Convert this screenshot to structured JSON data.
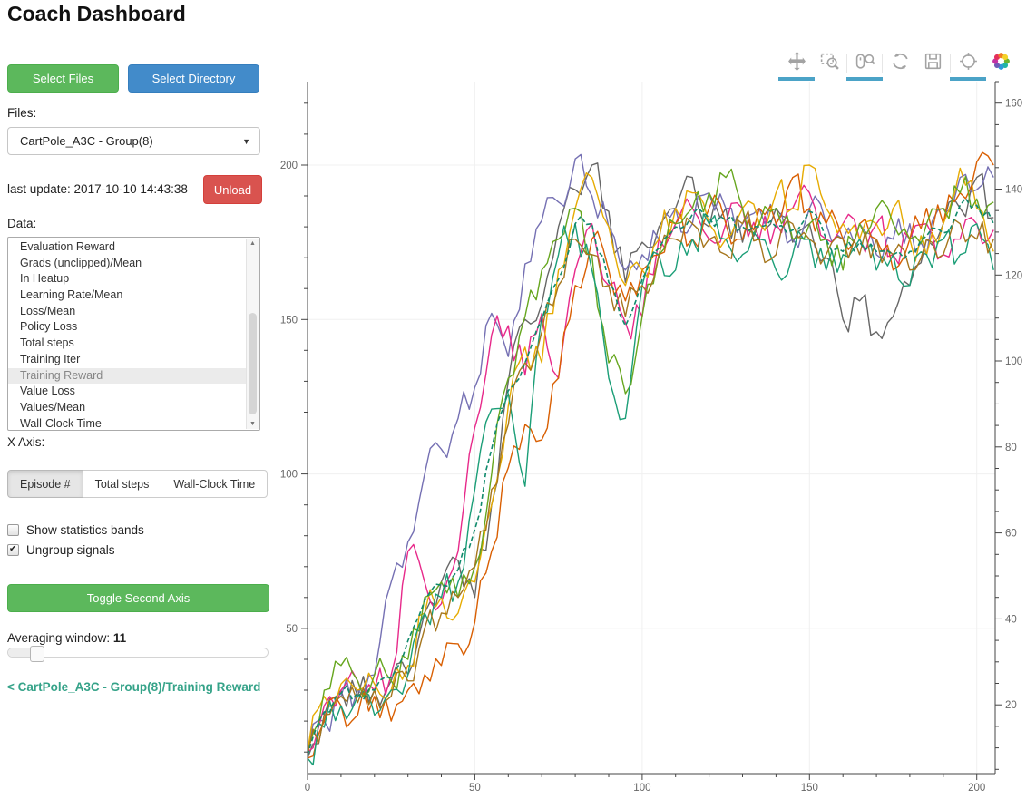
{
  "header": {
    "title": "Coach Dashboard"
  },
  "sidebar": {
    "select_files_label": "Select Files",
    "select_directory_label": "Select Directory",
    "files_label": "Files:",
    "files_selected": "CartPole_A3C - Group(8)",
    "last_update": "last update: 2017-10-10 14:43:38",
    "unload_label": "Unload",
    "data_label": "Data:",
    "data_items": [
      "Evaluation Reward",
      "Grads (unclipped)/Mean",
      "In Heatup",
      "Learning Rate/Mean",
      "Loss/Mean",
      "Policy Loss",
      "Total steps",
      "Training Iter",
      "Training Reward",
      "Value Loss",
      "Values/Mean",
      "Wall-Clock Time"
    ],
    "data_selected": "Training Reward",
    "x_axis_label": "X Axis:",
    "x_axis_options": [
      "Episode #",
      "Total steps",
      "Wall-Clock Time"
    ],
    "x_axis_selected": "Episode #",
    "checkboxes": [
      {
        "label": "Show statistics bands",
        "checked": false
      },
      {
        "label": "Ungroup signals",
        "checked": true
      }
    ],
    "toggle_second_axis_label": "Toggle Second Axis",
    "averaging_window_label": "Averaging window:",
    "averaging_window_value": "11",
    "breadcrumb_link": "< CartPole_A3C - Group(8)/Training Reward"
  },
  "toolbar": {
    "active_underline_color": "#4ba3c7",
    "tools": [
      {
        "name": "pan",
        "active": true
      },
      {
        "name": "box-zoom",
        "active": false
      },
      {
        "name": "wheel-zoom",
        "active": true
      },
      {
        "name": "reset",
        "active": false
      },
      {
        "name": "save",
        "active": false
      },
      {
        "name": "hover",
        "active": true
      },
      {
        "name": "bokeh-logo",
        "active": false
      }
    ]
  },
  "chart_data": {
    "type": "line",
    "title": "",
    "xlabel": "",
    "ylabel": "",
    "grid": true,
    "legend": "none",
    "x_axis": {
      "lim": [
        0,
        205.5
      ],
      "major_ticks": [
        0,
        50,
        100,
        150,
        200
      ],
      "minor_step": 10
    },
    "left_axis": {
      "lim": [
        3,
        227
      ],
      "major_ticks": [
        50,
        100,
        150,
        200
      ],
      "minor_step": 10
    },
    "right_axis": {
      "lim": [
        4,
        165
      ],
      "major_ticks": [
        20,
        40,
        60,
        80,
        100,
        120,
        140,
        160
      ],
      "minor_step": 5
    },
    "x": [
      0,
      5,
      10,
      15,
      20,
      25,
      30,
      35,
      40,
      45,
      50,
      55,
      60,
      65,
      70,
      75,
      80,
      85,
      90,
      95,
      100,
      105,
      110,
      115,
      120,
      125,
      130,
      135,
      140,
      145,
      150,
      155,
      160,
      165,
      170,
      175,
      180,
      185,
      190,
      195,
      200,
      205
    ],
    "series": [
      {
        "id": "worker-gray",
        "color": "#666666",
        "dash": false,
        "values": [
          8,
          22,
          30,
          28,
          30,
          33,
          35,
          55,
          65,
          72,
          60,
          90,
          130,
          150,
          155,
          180,
          192,
          200,
          185,
          162,
          175,
          180,
          186,
          196,
          180,
          186,
          175,
          181,
          186,
          175,
          181,
          170,
          150,
          156,
          146,
          151,
          161,
          176,
          181,
          186,
          196,
          183
        ]
      },
      {
        "id": "worker-purple",
        "color": "#7570b3",
        "dash": false,
        "values": [
          10,
          20,
          28,
          30,
          35,
          65,
          78,
          100,
          108,
          118,
          128,
          152,
          138,
          168,
          182,
          188,
          202,
          190,
          180,
          166,
          171,
          176,
          186,
          181,
          191,
          186,
          181,
          186,
          181,
          176,
          186,
          181,
          176,
          181,
          171,
          176,
          181,
          171,
          186,
          196,
          192,
          196
        ]
      },
      {
        "id": "worker-magenta",
        "color": "#e7298a",
        "dash": false,
        "values": [
          10,
          25,
          30,
          33,
          30,
          35,
          75,
          65,
          58,
          75,
          115,
          145,
          148,
          132,
          152,
          131,
          166,
          181,
          161,
          149,
          151,
          176,
          181,
          186,
          176,
          181,
          186,
          176,
          181,
          186,
          191,
          176,
          181,
          176,
          181,
          171,
          176,
          181,
          171,
          176,
          181,
          179
        ]
      },
      {
        "id": "worker-orange",
        "color": "#d95f02",
        "dash": false,
        "values": [
          8,
          20,
          25,
          22,
          28,
          20,
          30,
          35,
          38,
          45,
          52,
          75,
          102,
          116,
          111,
          131,
          161,
          176,
          166,
          156,
          166,
          171,
          181,
          176,
          186,
          181,
          176,
          186,
          181,
          196,
          186,
          181,
          176,
          181,
          176,
          166,
          176,
          186,
          181,
          191,
          201,
          200
        ]
      },
      {
        "id": "worker-gold",
        "color": "#e6ab02",
        "dash": false,
        "values": [
          10,
          28,
          32,
          30,
          32,
          30,
          38,
          55,
          60,
          55,
          65,
          90,
          122,
          141,
          136,
          166,
          186,
          196,
          180,
          161,
          166,
          176,
          186,
          191,
          181,
          176,
          186,
          181,
          191,
          186,
          200,
          186,
          181,
          176,
          181,
          186,
          176,
          171,
          181,
          199,
          186,
          172
        ]
      },
      {
        "id": "worker-yellowgreen",
        "color": "#66a61e",
        "dash": false,
        "values": [
          10,
          30,
          38,
          33,
          35,
          33,
          40,
          60,
          65,
          60,
          70,
          100,
          131,
          151,
          166,
          176,
          186,
          171,
          136,
          126,
          151,
          171,
          181,
          186,
          191,
          196,
          186,
          181,
          186,
          176,
          181,
          176,
          166,
          181,
          186,
          181,
          176,
          181,
          186,
          191,
          189,
          188
        ]
      },
      {
        "id": "worker-teal",
        "color": "#1b9e77",
        "dash": false,
        "values": [
          8,
          18,
          25,
          28,
          22,
          30,
          35,
          55,
          60,
          65,
          95,
          121,
          126,
          96,
          151,
          171,
          181,
          166,
          131,
          118,
          161,
          171,
          166,
          176,
          181,
          176,
          171,
          176,
          166,
          171,
          176,
          166,
          171,
          176,
          166,
          171,
          161,
          171,
          176,
          171,
          181,
          166
        ]
      },
      {
        "id": "worker-brown",
        "color": "#a6761d",
        "dash": false,
        "values": [
          9,
          22,
          28,
          26,
          30,
          28,
          33,
          50,
          55,
          60,
          70,
          95,
          116,
          136,
          146,
          161,
          176,
          171,
          161,
          151,
          161,
          171,
          176,
          181,
          176,
          171,
          181,
          176,
          171,
          181,
          176,
          171,
          176,
          171,
          176,
          171,
          166,
          176,
          171,
          181,
          176,
          176
        ]
      },
      {
        "id": "group-mean",
        "color": "#108a6c",
        "dash": true,
        "values": [
          9,
          23,
          29,
          29,
          30,
          34,
          46,
          59,
          64,
          69,
          82,
          108,
          127,
          136,
          150,
          163,
          181,
          181,
          162,
          148,
          163,
          173,
          180,
          184,
          183,
          182,
          180,
          180,
          180,
          179,
          185,
          176,
          172,
          175,
          172,
          171,
          172,
          177,
          178,
          187,
          187,
          181
        ]
      }
    ]
  }
}
